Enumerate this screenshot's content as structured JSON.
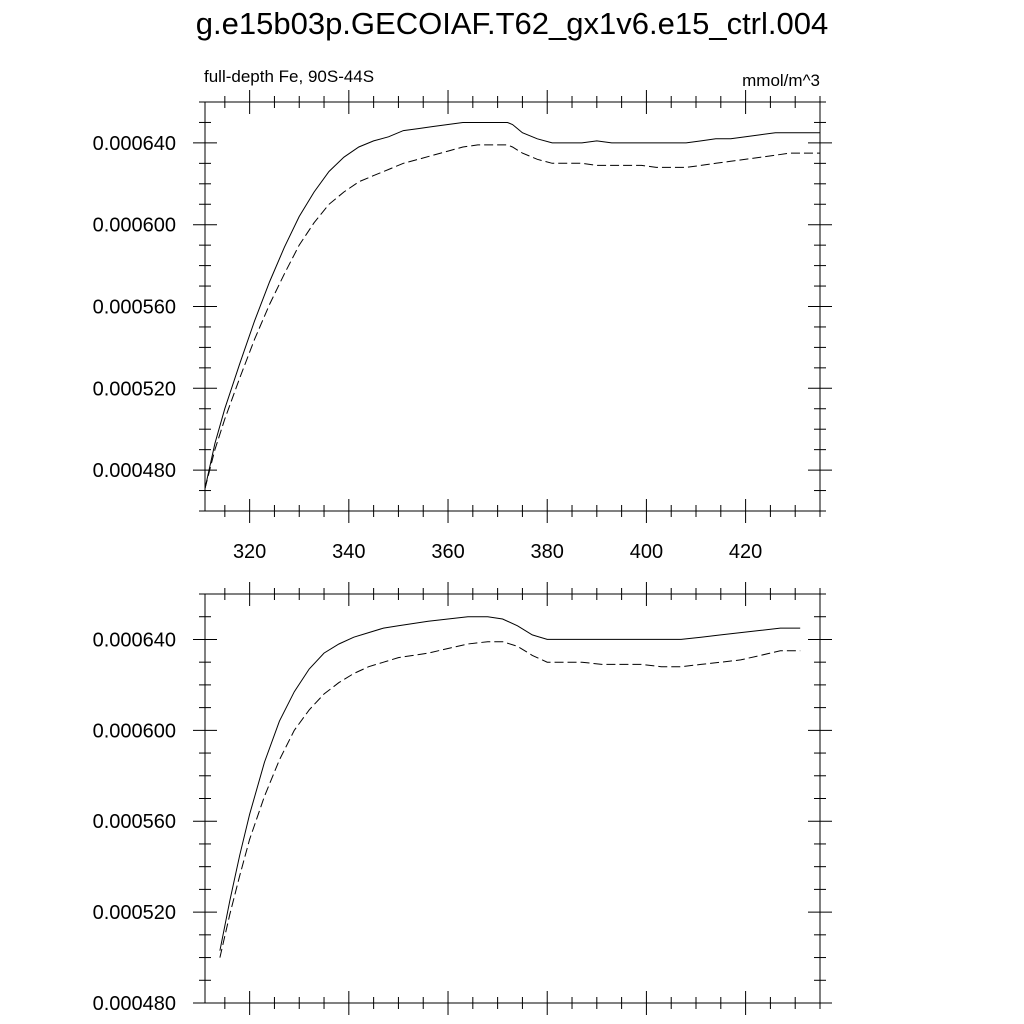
{
  "title": "g.e15b03p.GECOIAF.T62_gx1v6.e15_ctrl.004",
  "chart_data": [
    {
      "type": "line",
      "left_label": "full-depth Fe, 90S-44S",
      "right_label": "mmol/m^3",
      "xlabel": "",
      "ylabel": "",
      "xlim": [
        311,
        435
      ],
      "ylim": [
        0.00046,
        0.00066
      ],
      "xticks": [
        "320",
        "340",
        "360",
        "380",
        "400",
        "420"
      ],
      "yticks": [
        "0.000480",
        "0.000520",
        "0.000560",
        "0.000600",
        "0.000640"
      ],
      "grid": false,
      "series": [
        {
          "style": "solid",
          "x": [
            311,
            313,
            315,
            318,
            321,
            324,
            327,
            330,
            333,
            336,
            339,
            342,
            345,
            348,
            351,
            354,
            357,
            360,
            363,
            366,
            369,
            372,
            373,
            375,
            378,
            381,
            384,
            387,
            390,
            393,
            396,
            399,
            402,
            405,
            408,
            411,
            414,
            417,
            420,
            423,
            426,
            429,
            432,
            435
          ],
          "y": [
            0.000471,
            0.000493,
            0.00051,
            0.000532,
            0.000553,
            0.000572,
            0.000589,
            0.000604,
            0.000616,
            0.000626,
            0.000633,
            0.000638,
            0.000641,
            0.000643,
            0.000646,
            0.000647,
            0.000648,
            0.000649,
            0.00065,
            0.00065,
            0.00065,
            0.00065,
            0.000649,
            0.000645,
            0.000642,
            0.00064,
            0.00064,
            0.00064,
            0.000641,
            0.00064,
            0.00064,
            0.00064,
            0.00064,
            0.00064,
            0.00064,
            0.000641,
            0.000642,
            0.000642,
            0.000643,
            0.000644,
            0.000645,
            0.000645,
            0.000645,
            0.000645
          ]
        },
        {
          "style": "dashed",
          "x": [
            311,
            313,
            315,
            318,
            321,
            324,
            327,
            330,
            333,
            336,
            339,
            342,
            345,
            348,
            351,
            354,
            357,
            360,
            363,
            366,
            369,
            372,
            373,
            375,
            378,
            381,
            384,
            387,
            390,
            393,
            396,
            399,
            402,
            405,
            408,
            411,
            414,
            417,
            420,
            423,
            426,
            429,
            432,
            435
          ],
          "y": [
            0.000471,
            0.00049,
            0.000505,
            0.000525,
            0.000544,
            0.000561,
            0.000576,
            0.00059,
            0.000601,
            0.00061,
            0.000616,
            0.000621,
            0.000624,
            0.000627,
            0.00063,
            0.000632,
            0.000634,
            0.000636,
            0.000638,
            0.000639,
            0.000639,
            0.000639,
            0.000638,
            0.000635,
            0.000632,
            0.00063,
            0.00063,
            0.00063,
            0.000629,
            0.000629,
            0.000629,
            0.000629,
            0.000628,
            0.000628,
            0.000628,
            0.000629,
            0.00063,
            0.000631,
            0.000632,
            0.000633,
            0.000634,
            0.000635,
            0.000635,
            0.000635
          ]
        }
      ]
    },
    {
      "type": "line",
      "xlabel": "",
      "ylabel": "",
      "xlim": [
        311,
        435
      ],
      "ylim": [
        0.00048,
        0.00066
      ],
      "xticks": [],
      "yticks": [
        "0.000480",
        "0.000520",
        "0.000560",
        "0.000600",
        "0.000640"
      ],
      "grid": false,
      "series": [
        {
          "style": "solid",
          "x": [
            314,
            316,
            318,
            320,
            323,
            326,
            329,
            332,
            335,
            338,
            341,
            344,
            347,
            350,
            353,
            356,
            360,
            364,
            368,
            371,
            374,
            377,
            380,
            383,
            387,
            391,
            395,
            399,
            403,
            407,
            411,
            415,
            419,
            423,
            427,
            431
          ],
          "y": [
            0.000503,
            0.000525,
            0.000545,
            0.000563,
            0.000586,
            0.000604,
            0.000617,
            0.000627,
            0.000634,
            0.000638,
            0.000641,
            0.000643,
            0.000645,
            0.000646,
            0.000647,
            0.000648,
            0.000649,
            0.00065,
            0.00065,
            0.000649,
            0.000646,
            0.000642,
            0.00064,
            0.00064,
            0.00064,
            0.00064,
            0.00064,
            0.00064,
            0.00064,
            0.00064,
            0.000641,
            0.000642,
            0.000643,
            0.000644,
            0.000645,
            0.000645
          ]
        },
        {
          "style": "dashed",
          "x": [
            314,
            316,
            318,
            320,
            323,
            326,
            329,
            332,
            335,
            338,
            341,
            344,
            347,
            350,
            353,
            356,
            360,
            364,
            368,
            371,
            374,
            377,
            380,
            383,
            387,
            391,
            395,
            399,
            403,
            407,
            411,
            415,
            419,
            423,
            427,
            431
          ],
          "y": [
            0.0005,
            0.000519,
            0.000536,
            0.000552,
            0.000571,
            0.000587,
            0.0006,
            0.000609,
            0.000616,
            0.000621,
            0.000625,
            0.000628,
            0.00063,
            0.000632,
            0.000633,
            0.000634,
            0.000636,
            0.000638,
            0.000639,
            0.000639,
            0.000637,
            0.000633,
            0.00063,
            0.00063,
            0.00063,
            0.000629,
            0.000629,
            0.000629,
            0.000628,
            0.000628,
            0.000629,
            0.00063,
            0.000631,
            0.000633,
            0.000635,
            0.000635
          ]
        }
      ]
    }
  ]
}
